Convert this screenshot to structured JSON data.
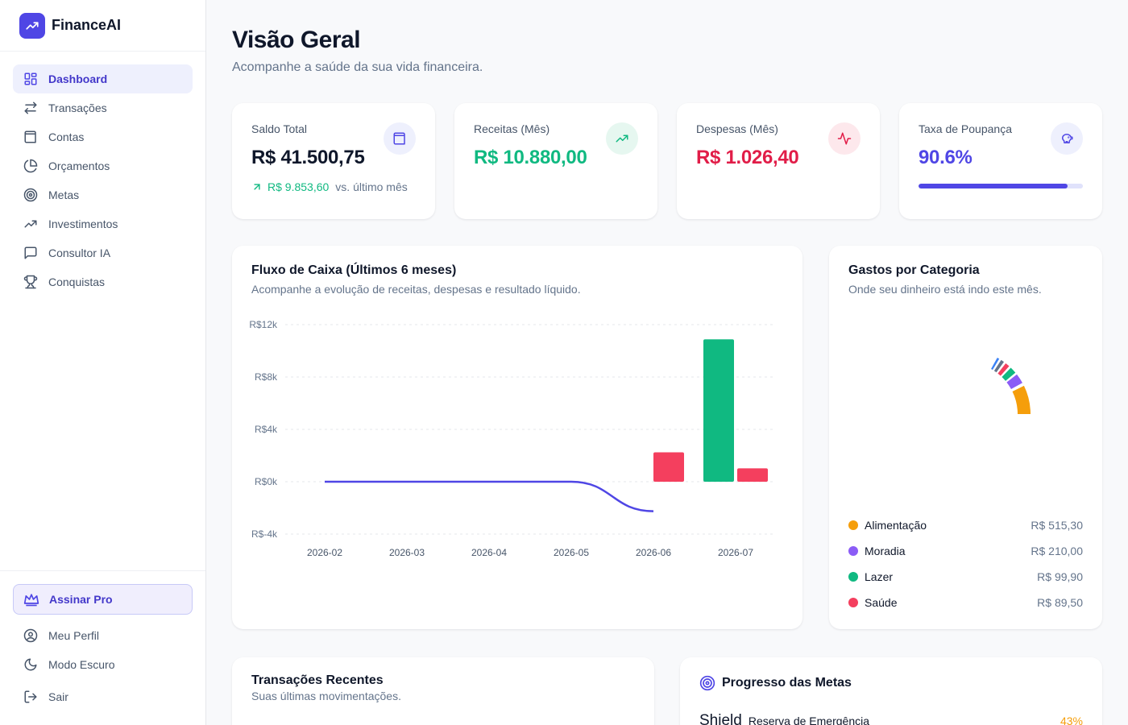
{
  "app": {
    "name": "FinanceAI"
  },
  "sidebar": {
    "items": [
      {
        "label": "Dashboard",
        "icon": "layout-grid-icon",
        "active": true
      },
      {
        "label": "Transações",
        "icon": "arrows-exchange-icon"
      },
      {
        "label": "Contas",
        "icon": "wallet-icon"
      },
      {
        "label": "Orçamentos",
        "icon": "pie-chart-icon"
      },
      {
        "label": "Metas",
        "icon": "target-icon"
      },
      {
        "label": "Investimentos",
        "icon": "trending-up-icon"
      },
      {
        "label": "Consultor IA",
        "icon": "message-square-icon"
      },
      {
        "label": "Conquistas",
        "icon": "trophy-icon"
      }
    ],
    "pro_label": "Assinar Pro",
    "profile_label": "Meu Perfil",
    "dark_mode_label": "Modo Escuro",
    "logout_label": "Sair"
  },
  "header": {
    "title": "Visão Geral",
    "subtitle": "Acompanhe a saúde da sua vida financeira."
  },
  "kpis": {
    "saldo": {
      "label": "Saldo Total",
      "value": "R$ 41.500,75",
      "trend_value": "R$ 9.853,60",
      "trend_text": "vs. último mês",
      "icon": "wallet-icon"
    },
    "receitas": {
      "label": "Receitas (Mês)",
      "value": "R$ 10.880,00",
      "icon": "trending-up-icon",
      "color": "#10b981"
    },
    "despesas": {
      "label": "Despesas (Mês)",
      "value": "R$ 1.026,40",
      "icon": "activity-icon",
      "color": "#e11d48"
    },
    "poupanca": {
      "label": "Taxa de Poupança",
      "value": "90.6%",
      "progress": 0.906,
      "icon": "piggy-bank-icon",
      "color": "#4f46e5"
    }
  },
  "cashflow": {
    "title": "Fluxo de Caixa (Últimos 6 meses)",
    "subtitle": "Acompanhe a evolução de receitas, despesas e resultado líquido."
  },
  "categories": {
    "title": "Gastos por Categoria",
    "subtitle": "Onde seu dinheiro está indo este mês.",
    "items": [
      {
        "name": "Alimentação",
        "value": "R$ 515,30",
        "amount": 515.3,
        "color": "#f59e0b"
      },
      {
        "name": "Moradia",
        "value": "R$ 210,00",
        "amount": 210.0,
        "color": "#8b5cf6"
      },
      {
        "name": "Lazer",
        "value": "R$ 99,90",
        "amount": 99.9,
        "color": "#10b981"
      },
      {
        "name": "Saúde",
        "value": "R$ 89,50",
        "amount": 89.5,
        "color": "#f43f5e"
      }
    ]
  },
  "recent": {
    "title": "Transações Recentes",
    "subtitle": "Suas últimas movimentações."
  },
  "goals": {
    "title": "Progresso das Metas",
    "items": [
      {
        "icon_text": "Shield",
        "name": "Reserva de Emergência",
        "percent": "43%"
      }
    ]
  },
  "chart_data": {
    "type": "bar",
    "categories": [
      "2026-02",
      "2026-03",
      "2026-04",
      "2026-05",
      "2026-06",
      "2026-07"
    ],
    "y_ticks": [
      "R$12k",
      "R$8k",
      "R$4k",
      "R$0k",
      "R$-4k"
    ],
    "ylim": [
      -4000,
      12000
    ],
    "grid": true,
    "series": [
      {
        "kind": "bar",
        "color": "#10b981",
        "values": [
          0,
          0,
          0,
          0,
          0,
          10880
        ]
      },
      {
        "kind": "bar",
        "color": "#f43f5e",
        "values": [
          0,
          0,
          0,
          0,
          2250,
          1026.4
        ]
      },
      {
        "kind": "line",
        "color": "#4f46e5",
        "values": [
          0,
          0,
          0,
          0,
          -2250,
          null
        ]
      }
    ]
  }
}
